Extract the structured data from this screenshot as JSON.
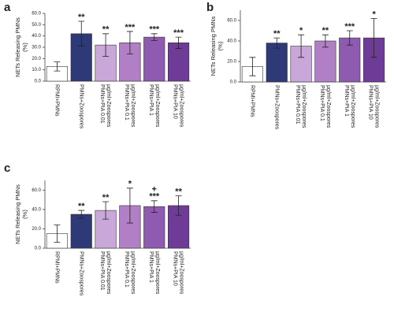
{
  "chart_data": [
    {
      "type": "bar",
      "panel_label": "a",
      "ylabel": [
        "NETs Releasing PMNs",
        "(%)"
      ],
      "categories": [
        [
          "RPMI+PMNs"
        ],
        [
          "PMNs+Zoospores"
        ],
        [
          "PMNs+PIA 0.01",
          "µg/ml+Zoospores"
        ],
        [
          "PMNs+PIA 0.1",
          "µg/ml+Zoospores"
        ],
        [
          "PMNs+PIA 1",
          "µg/ml+Zoospores"
        ],
        [
          "PMNs+PIA 10",
          "µg/ml+Zoospores"
        ]
      ],
      "values": [
        13,
        42,
        32,
        34,
        39,
        34
      ],
      "errors": [
        4,
        11,
        10,
        10,
        3,
        5
      ],
      "annotations": [
        null,
        "**",
        "**",
        "***",
        "***",
        "***"
      ],
      "colors": [
        "#ffffff",
        "#2e3a78",
        "#c9a7d9",
        "#b07fc6",
        "#8f5bb0",
        "#6e3b96"
      ],
      "ylim": [
        0,
        60
      ],
      "yticks": [
        {
          "value": 0,
          "label": "0.0"
        },
        {
          "value": 10,
          "label": "10.0"
        },
        {
          "value": 20,
          "label": "20.0"
        },
        {
          "value": 30,
          "label": "30.0"
        },
        {
          "value": 40,
          "label": "40.0"
        },
        {
          "value": 50,
          "label": "50.0"
        },
        {
          "value": 60,
          "label": "60.0"
        }
      ]
    },
    {
      "type": "bar",
      "panel_label": "b",
      "ylabel": [
        "NETs Releasing PMNs",
        "(%)"
      ],
      "categories": [
        [
          "RPMI+PMNs"
        ],
        [
          "PMNs+Zoospores"
        ],
        [
          "PMNs+PIA 0.01",
          "µg/ml+Zoospores"
        ],
        [
          "PMNs+PIA 0.1",
          "µg/ml+Zoospores"
        ],
        [
          "PMNs+PIA 1",
          "µg/ml+Zoospores"
        ],
        [
          "PMNs+PIA 10",
          "µg/ml+Zoospores"
        ]
      ],
      "values": [
        15,
        38,
        35,
        40,
        43,
        43
      ],
      "errors": [
        9,
        5,
        11,
        6,
        7,
        19
      ],
      "annotations": [
        null,
        "**",
        "*",
        "**",
        "***",
        "*"
      ],
      "colors": [
        "#ffffff",
        "#2e3a78",
        "#c9a7d9",
        "#b07fc6",
        "#8f5bb0",
        "#6e3b96"
      ],
      "ylim": [
        0,
        70
      ],
      "yticks": [
        {
          "value": 0,
          "label": "0.0"
        },
        {
          "value": 20,
          "label": "20.0"
        },
        {
          "value": 40,
          "label": "40.0"
        },
        {
          "value": 60,
          "label": "60.0"
        }
      ]
    },
    {
      "type": "bar",
      "panel_label": "c",
      "ylabel": [
        "NETs Releasing PMNs",
        "(%)"
      ],
      "categories": [
        [
          "RPMI+PMNs"
        ],
        [
          "PMNs+Zoospores"
        ],
        [
          "PMNs+PIA 0.01",
          "µg/ml+Zoospores"
        ],
        [
          "PMNs+PIA 0.1",
          "µg/ml+Zoospores"
        ],
        [
          "PMNs+PIA 1",
          "µg/ml+Zoospores"
        ],
        [
          "PMNs+PIA 10",
          "µg/ml+Zoospores"
        ]
      ],
      "values": [
        15,
        35,
        39,
        44,
        43,
        44
      ],
      "errors": [
        9,
        4,
        9,
        18,
        6,
        10
      ],
      "annotations": [
        null,
        "**",
        "**",
        "*",
        "***",
        "**"
      ],
      "annotations_upper": [
        null,
        null,
        null,
        null,
        "+",
        null
      ],
      "colors": [
        "#ffffff",
        "#2e3a78",
        "#c9a7d9",
        "#b07fc6",
        "#8f5bb0",
        "#6e3b96"
      ],
      "ylim": [
        0,
        70
      ],
      "yticks": [
        {
          "value": 0,
          "label": "0.0"
        },
        {
          "value": 20,
          "label": "20.0"
        },
        {
          "value": 40,
          "label": "40.0"
        },
        {
          "value": 60,
          "label": "60.0"
        }
      ]
    }
  ]
}
